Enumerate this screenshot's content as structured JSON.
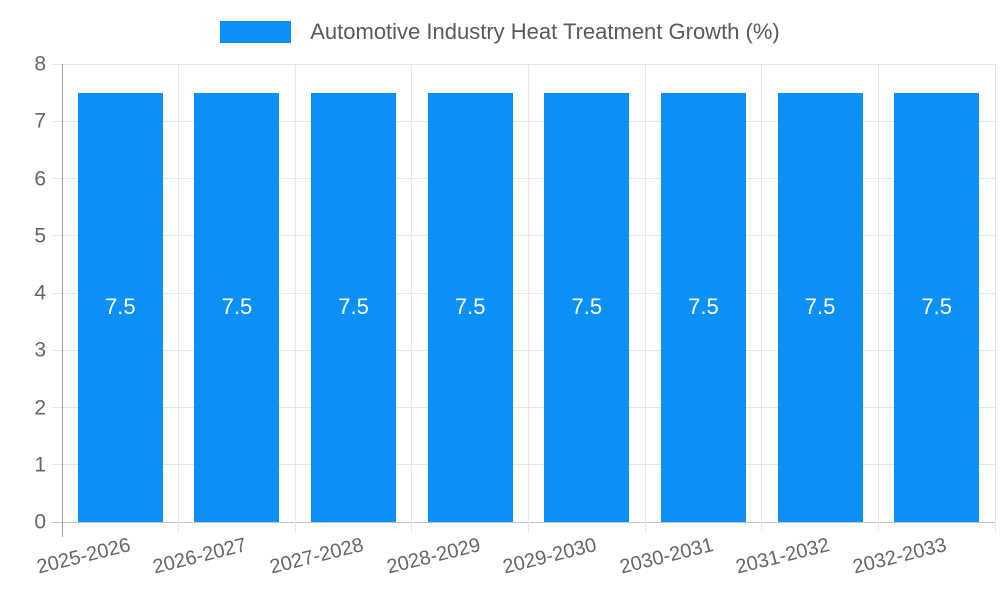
{
  "legend": {
    "label": "Automotive Industry Heat Treatment Growth (%)"
  },
  "chart_data": {
    "type": "bar",
    "title": "Automotive Industry Heat Treatment Growth (%)",
    "categories": [
      "2025-2026",
      "2026-2027",
      "2027-2028",
      "2028-2029",
      "2029-2030",
      "2030-2031",
      "2031-2032",
      "2032-2033"
    ],
    "values": [
      7.5,
      7.5,
      7.5,
      7.5,
      7.5,
      7.5,
      7.5,
      7.5
    ],
    "value_labels": [
      "7.5",
      "7.5",
      "7.5",
      "7.5",
      "7.5",
      "7.5",
      "7.5",
      "7.5"
    ],
    "xlabel": "",
    "ylabel": "",
    "ylim": [
      0,
      8
    ],
    "yticks": [
      0,
      1,
      2,
      3,
      4,
      5,
      6,
      7,
      8
    ],
    "grid": true,
    "legend_position": "top",
    "x_label_rotation_deg": -14
  },
  "colors": {
    "bar": "#0a90f6",
    "value_label": "#ffffff",
    "axis_text": "#666666",
    "legend_text": "#595959",
    "gridline": "#e6e6e6",
    "zero_line": "#c2c2c2",
    "axis_line": "#9e9e9e",
    "background": "#ffffff"
  }
}
